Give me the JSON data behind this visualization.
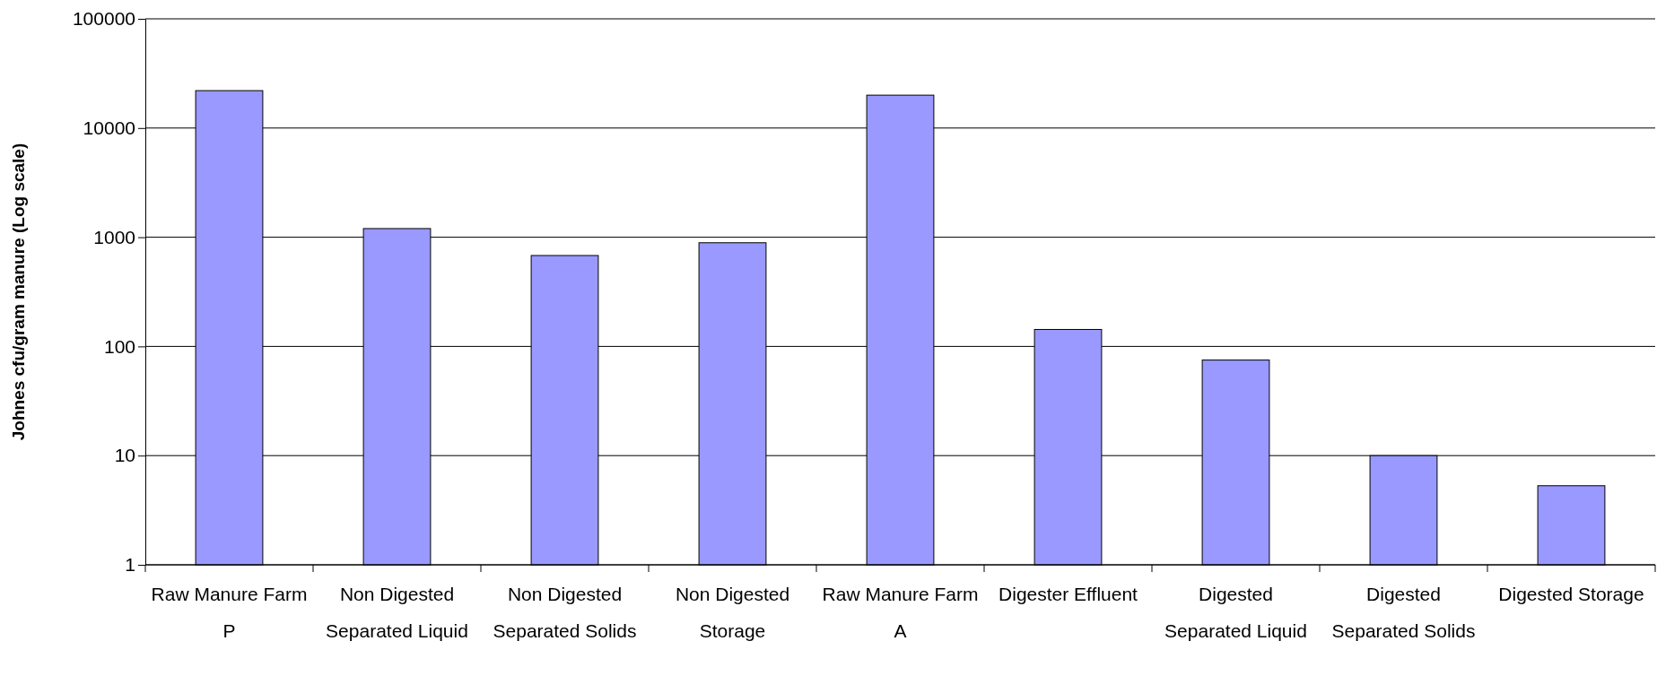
{
  "chart_data": {
    "type": "bar",
    "ylabel": "Johnes cfu/gram manure (Log scale)",
    "categories": [
      "Raw Manure Farm P",
      "Non Digested Separated Liquid",
      "Non Digested Separated Solids",
      "Non Digested Storage",
      "Raw Manure Farm A",
      "Digester Effluent",
      "Digested Separated Liquid",
      "Digested Separated Solids",
      "Digested Storage"
    ],
    "values": [
      22000,
      1200,
      680,
      890,
      20000,
      143,
      75,
      10,
      5.3
    ],
    "color": "#9999ff",
    "log": true,
    "ylim": [
      1,
      100000
    ],
    "yticks": [
      1,
      10,
      100,
      1000,
      10000,
      100000
    ],
    "grid": "y"
  }
}
